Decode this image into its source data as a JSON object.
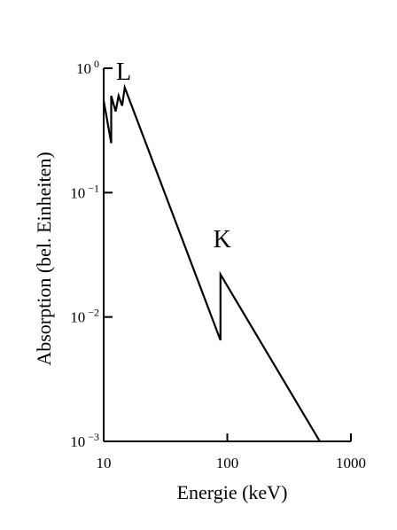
{
  "chart_data": {
    "type": "line",
    "xlabel": "Energie (keV)",
    "ylabel": "Absorption (bel. Einheiten)",
    "x_scale": "log",
    "y_scale": "log",
    "xlim": [
      10,
      1000
    ],
    "ylim": [
      0.001,
      1
    ],
    "x_ticks": [
      {
        "value": 10,
        "label": "10"
      },
      {
        "value": 100,
        "label": "100"
      },
      {
        "value": 1000,
        "label": "1000"
      }
    ],
    "y_ticks": [
      {
        "value": 0.001,
        "base": "10",
        "exp": "−3"
      },
      {
        "value": 0.01,
        "base": "10",
        "exp": "−2"
      },
      {
        "value": 0.1,
        "base": "10",
        "exp": "−1"
      },
      {
        "value": 1,
        "base": "10",
        "exp": "0"
      }
    ],
    "grid": false,
    "series": [
      {
        "color": "#000000",
        "points": [
          [
            10,
            0.55
          ],
          [
            11.5,
            0.25
          ],
          [
            11.5,
            0.6
          ],
          [
            12.5,
            0.45
          ],
          [
            13.2,
            0.6
          ],
          [
            14.1,
            0.5
          ],
          [
            14.8,
            0.7
          ],
          [
            88,
            0.0065
          ],
          [
            88,
            0.022
          ],
          [
            560,
            0.001
          ]
        ]
      }
    ],
    "annotations": [
      {
        "text": "L",
        "x": 14.5,
        "y": 1.0
      },
      {
        "text": "K",
        "x": 91,
        "y": 0.045
      }
    ]
  }
}
